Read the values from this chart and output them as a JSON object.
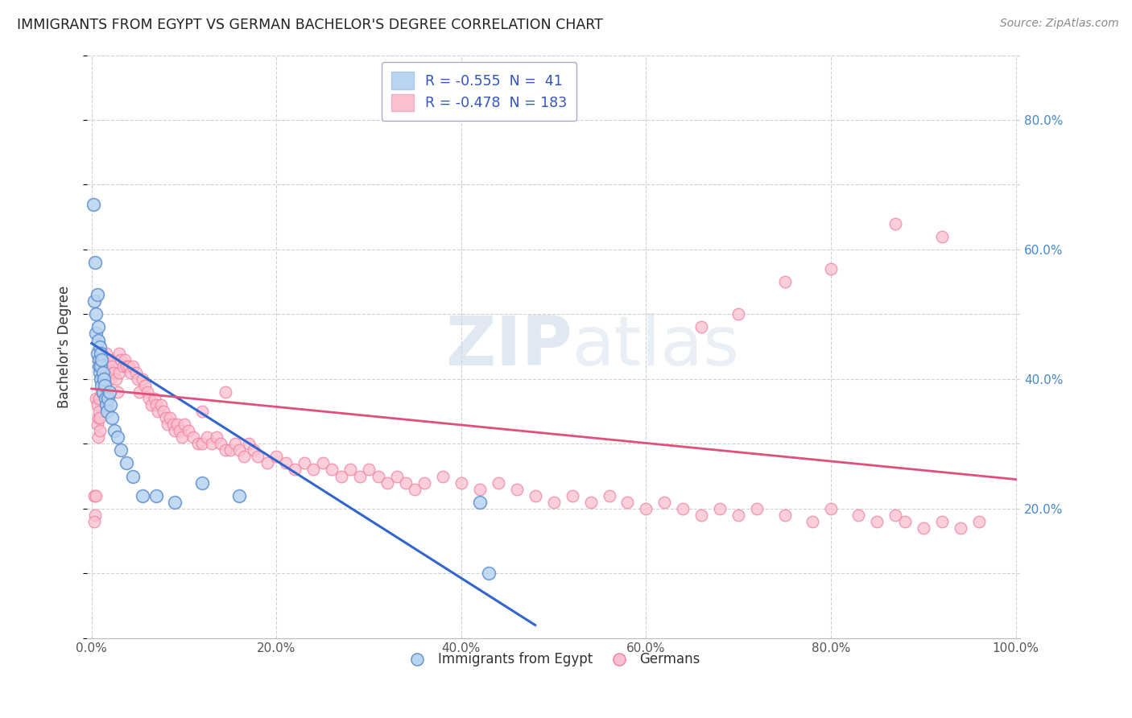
{
  "title": "IMMIGRANTS FROM EGYPT VS GERMAN BACHELOR'S DEGREE CORRELATION CHART",
  "source": "Source: ZipAtlas.com",
  "ylabel": "Bachelor's Degree",
  "y_ticks": [
    0.2,
    0.4,
    0.6,
    0.8
  ],
  "y_tick_labels": [
    "20.0%",
    "40.0%",
    "60.0%",
    "80.0%"
  ],
  "x_ticks": [
    0.0,
    0.2,
    0.4,
    0.6,
    0.8,
    1.0
  ],
  "x_tick_labels": [
    "0.0%",
    "20.0%",
    "40.0%",
    "60.0%",
    "80.0%",
    "100.0%"
  ],
  "legend_label_blue": "Immigrants from Egypt",
  "legend_label_pink": "Germans",
  "legend_blue_text": "R = -0.555  N =  41",
  "legend_pink_text": "R = -0.478  N = 183",
  "background_color": "#ffffff",
  "grid_color": "#cccccc",
  "blue_scatter_x": [
    0.002,
    0.003,
    0.004,
    0.005,
    0.005,
    0.006,
    0.006,
    0.007,
    0.007,
    0.008,
    0.008,
    0.009,
    0.009,
    0.01,
    0.01,
    0.01,
    0.011,
    0.011,
    0.012,
    0.012,
    0.013,
    0.014,
    0.015,
    0.016,
    0.017,
    0.018,
    0.019,
    0.02,
    0.022,
    0.025,
    0.028,
    0.032,
    0.038,
    0.045,
    0.055,
    0.07,
    0.09,
    0.12,
    0.16,
    0.42,
    0.43
  ],
  "blue_scatter_y": [
    0.67,
    0.52,
    0.58,
    0.5,
    0.47,
    0.53,
    0.44,
    0.48,
    0.46,
    0.43,
    0.42,
    0.45,
    0.41,
    0.44,
    0.42,
    0.4,
    0.43,
    0.39,
    0.41,
    0.38,
    0.4,
    0.39,
    0.37,
    0.36,
    0.35,
    0.37,
    0.38,
    0.36,
    0.34,
    0.32,
    0.31,
    0.29,
    0.27,
    0.25,
    0.22,
    0.22,
    0.21,
    0.24,
    0.22,
    0.21,
    0.1
  ],
  "pink_scatter_x": [
    0.003,
    0.004,
    0.005,
    0.006,
    0.006,
    0.007,
    0.007,
    0.008,
    0.008,
    0.009,
    0.009,
    0.01,
    0.01,
    0.011,
    0.011,
    0.012,
    0.012,
    0.013,
    0.014,
    0.015,
    0.015,
    0.016,
    0.016,
    0.017,
    0.018,
    0.019,
    0.02,
    0.02,
    0.022,
    0.024,
    0.026,
    0.028,
    0.03,
    0.03,
    0.032,
    0.034,
    0.036,
    0.038,
    0.04,
    0.042,
    0.045,
    0.048,
    0.05,
    0.052,
    0.055,
    0.058,
    0.06,
    0.062,
    0.065,
    0.068,
    0.07,
    0.072,
    0.075,
    0.078,
    0.08,
    0.082,
    0.085,
    0.088,
    0.09,
    0.093,
    0.095,
    0.098,
    0.1,
    0.105,
    0.11,
    0.115,
    0.12,
    0.125,
    0.13,
    0.135,
    0.14,
    0.145,
    0.15,
    0.155,
    0.16,
    0.165,
    0.17,
    0.175,
    0.18,
    0.19,
    0.2,
    0.21,
    0.22,
    0.23,
    0.24,
    0.25,
    0.26,
    0.27,
    0.28,
    0.29,
    0.3,
    0.31,
    0.32,
    0.33,
    0.34,
    0.35,
    0.36,
    0.38,
    0.4,
    0.42,
    0.44,
    0.46,
    0.48,
    0.5,
    0.52,
    0.54,
    0.56,
    0.58,
    0.6,
    0.62,
    0.64,
    0.66,
    0.68,
    0.7,
    0.72,
    0.75,
    0.78,
    0.8,
    0.83,
    0.85,
    0.87,
    0.88,
    0.9,
    0.92,
    0.94,
    0.96
  ],
  "pink_scatter_y": [
    0.22,
    0.19,
    0.37,
    0.36,
    0.33,
    0.34,
    0.31,
    0.37,
    0.35,
    0.34,
    0.32,
    0.43,
    0.4,
    0.42,
    0.38,
    0.41,
    0.38,
    0.4,
    0.39,
    0.43,
    0.41,
    0.44,
    0.42,
    0.43,
    0.42,
    0.41,
    0.43,
    0.4,
    0.42,
    0.41,
    0.4,
    0.38,
    0.44,
    0.41,
    0.43,
    0.42,
    0.43,
    0.42,
    0.42,
    0.41,
    0.42,
    0.41,
    0.4,
    0.38,
    0.4,
    0.39,
    0.38,
    0.37,
    0.36,
    0.37,
    0.36,
    0.35,
    0.36,
    0.35,
    0.34,
    0.33,
    0.34,
    0.33,
    0.32,
    0.33,
    0.32,
    0.31,
    0.33,
    0.32,
    0.31,
    0.3,
    0.3,
    0.31,
    0.3,
    0.31,
    0.3,
    0.29,
    0.29,
    0.3,
    0.29,
    0.28,
    0.3,
    0.29,
    0.28,
    0.27,
    0.28,
    0.27,
    0.26,
    0.27,
    0.26,
    0.27,
    0.26,
    0.25,
    0.26,
    0.25,
    0.26,
    0.25,
    0.24,
    0.25,
    0.24,
    0.23,
    0.24,
    0.25,
    0.24,
    0.23,
    0.24,
    0.23,
    0.22,
    0.21,
    0.22,
    0.21,
    0.22,
    0.21,
    0.2,
    0.21,
    0.2,
    0.19,
    0.2,
    0.19,
    0.2,
    0.19,
    0.18,
    0.2,
    0.19,
    0.18,
    0.19,
    0.18,
    0.17,
    0.18,
    0.17,
    0.18
  ],
  "pink_outlier_x": [
    0.003,
    0.005,
    0.12,
    0.145,
    0.66,
    0.7,
    0.75,
    0.8,
    0.87,
    0.92
  ],
  "pink_outlier_y": [
    0.18,
    0.22,
    0.35,
    0.38,
    0.48,
    0.5,
    0.55,
    0.57,
    0.64,
    0.62
  ],
  "blue_line_x": [
    0.0,
    0.48
  ],
  "blue_line_y": [
    0.455,
    0.02
  ],
  "pink_line_x": [
    0.0,
    1.0
  ],
  "pink_line_y": [
    0.385,
    0.245
  ],
  "xlim": [
    -0.005,
    1.005
  ],
  "ylim": [
    0.0,
    0.9
  ]
}
